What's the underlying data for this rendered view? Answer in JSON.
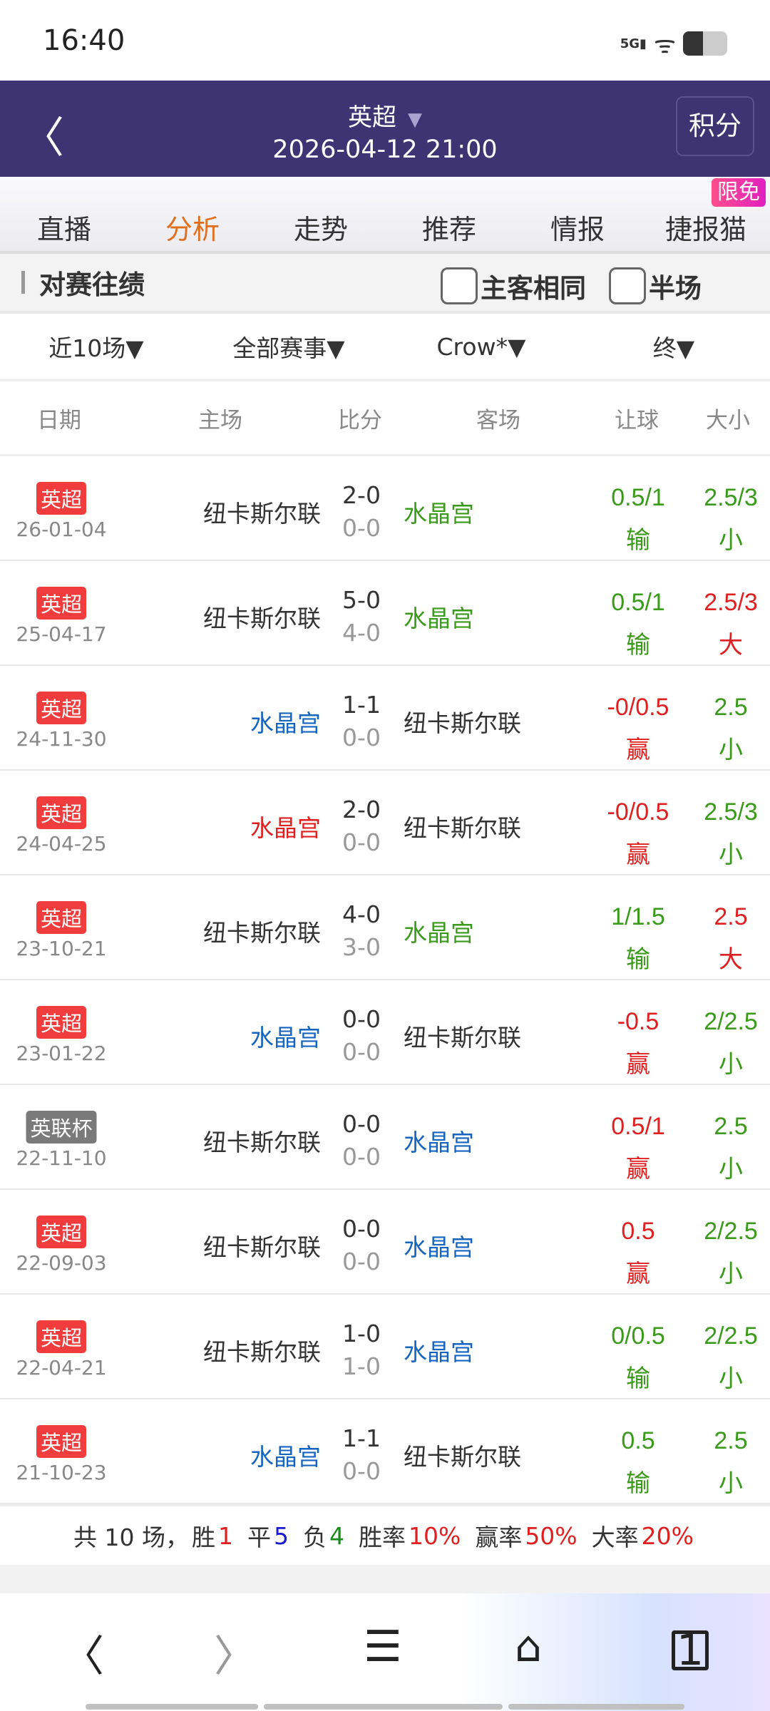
{
  "status": {
    "time": "16:40",
    "network": "5G"
  },
  "header": {
    "league": "英超",
    "datetime": "2026-04-12 21:00",
    "points_button": "积分"
  },
  "tabs": [
    {
      "label": "直播"
    },
    {
      "label": "分析",
      "active": true
    },
    {
      "label": "走势"
    },
    {
      "label": "推荐"
    },
    {
      "label": "情报"
    },
    {
      "label": "捷报猫"
    }
  ],
  "tab_badge": "限免",
  "section": {
    "title": "对赛往绩",
    "same_home_away": "主客相同",
    "half_time": "半场"
  },
  "filters": [
    "近10场",
    "全部赛事",
    "Crow*",
    "终"
  ],
  "columns": [
    "日期",
    "主场",
    "比分",
    "客场",
    "让球",
    "大小"
  ],
  "colors": {
    "red": "#e02020",
    "green": "#3a9a1a",
    "blue": "#1565c0",
    "dark": "#333333",
    "league_epl": "#f03c3c",
    "league_cup": "#7a7a7a"
  },
  "rows": [
    {
      "league": "英超",
      "date": "26-01-04",
      "home": "纽卡斯尔联",
      "home_color": "dark",
      "score": "2-0",
      "half": "0-0",
      "away": "水晶宫",
      "away_color": "green",
      "handicap": "0.5/1",
      "handicap_result": "输",
      "hc_color": "green",
      "ou": "2.5/3",
      "ou_result": "小",
      "ou_color": "green"
    },
    {
      "league": "英超",
      "date": "25-04-17",
      "home": "纽卡斯尔联",
      "home_color": "dark",
      "score": "5-0",
      "half": "4-0",
      "away": "水晶宫",
      "away_color": "green",
      "handicap": "0.5/1",
      "handicap_result": "输",
      "hc_color": "green",
      "ou": "2.5/3",
      "ou_result": "大",
      "ou_color": "red"
    },
    {
      "league": "英超",
      "date": "24-11-30",
      "home": "水晶宫",
      "home_color": "blue",
      "score": "1-1",
      "half": "0-0",
      "away": "纽卡斯尔联",
      "away_color": "dark",
      "handicap": "-0/0.5",
      "handicap_result": "赢",
      "hc_color": "red",
      "ou": "2.5",
      "ou_result": "小",
      "ou_color": "green"
    },
    {
      "league": "英超",
      "date": "24-04-25",
      "home": "水晶宫",
      "home_color": "red",
      "score": "2-0",
      "half": "0-0",
      "away": "纽卡斯尔联",
      "away_color": "dark",
      "handicap": "-0/0.5",
      "handicap_result": "赢",
      "hc_color": "red",
      "ou": "2.5/3",
      "ou_result": "小",
      "ou_color": "green"
    },
    {
      "league": "英超",
      "date": "23-10-21",
      "home": "纽卡斯尔联",
      "home_color": "dark",
      "score": "4-0",
      "half": "3-0",
      "away": "水晶宫",
      "away_color": "green",
      "handicap": "1/1.5",
      "handicap_result": "输",
      "hc_color": "green",
      "ou": "2.5",
      "ou_result": "大",
      "ou_color": "red"
    },
    {
      "league": "英超",
      "date": "23-01-22",
      "home": "水晶宫",
      "home_color": "blue",
      "score": "0-0",
      "half": "0-0",
      "away": "纽卡斯尔联",
      "away_color": "dark",
      "handicap": "-0.5",
      "handicap_result": "赢",
      "hc_color": "red",
      "ou": "2/2.5",
      "ou_result": "小",
      "ou_color": "green"
    },
    {
      "league": "英联杯",
      "date": "22-11-10",
      "home": "纽卡斯尔联",
      "home_color": "dark",
      "score": "0-0",
      "half": "0-0",
      "away": "水晶宫",
      "away_color": "blue",
      "handicap": "0.5/1",
      "handicap_result": "赢",
      "hc_color": "red",
      "ou": "2.5",
      "ou_result": "小",
      "ou_color": "green"
    },
    {
      "league": "英超",
      "date": "22-09-03",
      "home": "纽卡斯尔联",
      "home_color": "dark",
      "score": "0-0",
      "half": "0-0",
      "away": "水晶宫",
      "away_color": "blue",
      "handicap": "0.5",
      "handicap_result": "赢",
      "hc_color": "red",
      "ou": "2/2.5",
      "ou_result": "小",
      "ou_color": "green"
    },
    {
      "league": "英超",
      "date": "22-04-21",
      "home": "纽卡斯尔联",
      "home_color": "dark",
      "score": "1-0",
      "half": "1-0",
      "away": "水晶宫",
      "away_color": "blue",
      "handicap": "0/0.5",
      "handicap_result": "输",
      "hc_color": "green",
      "ou": "2/2.5",
      "ou_result": "小",
      "ou_color": "green"
    },
    {
      "league": "英超",
      "date": "21-10-23",
      "home": "水晶宫",
      "home_color": "blue",
      "score": "1-1",
      "half": "0-0",
      "away": "纽卡斯尔联",
      "away_color": "dark",
      "handicap": "0.5",
      "handicap_result": "输",
      "hc_color": "green",
      "ou": "2.5",
      "ou_result": "小",
      "ou_color": "green"
    }
  ],
  "summary": {
    "total_label": "共 10 场，",
    "win_label": "胜",
    "win": "1",
    "draw_label": "平",
    "draw": "5",
    "loss_label": "负",
    "loss": "4",
    "win_rate_label": "胜率",
    "win_rate": "10%",
    "cover_rate_label": "赢率",
    "cover_rate": "50%",
    "over_rate_label": "大率",
    "over_rate": "20%"
  },
  "bottom_nav": {
    "tab_count": "1"
  }
}
